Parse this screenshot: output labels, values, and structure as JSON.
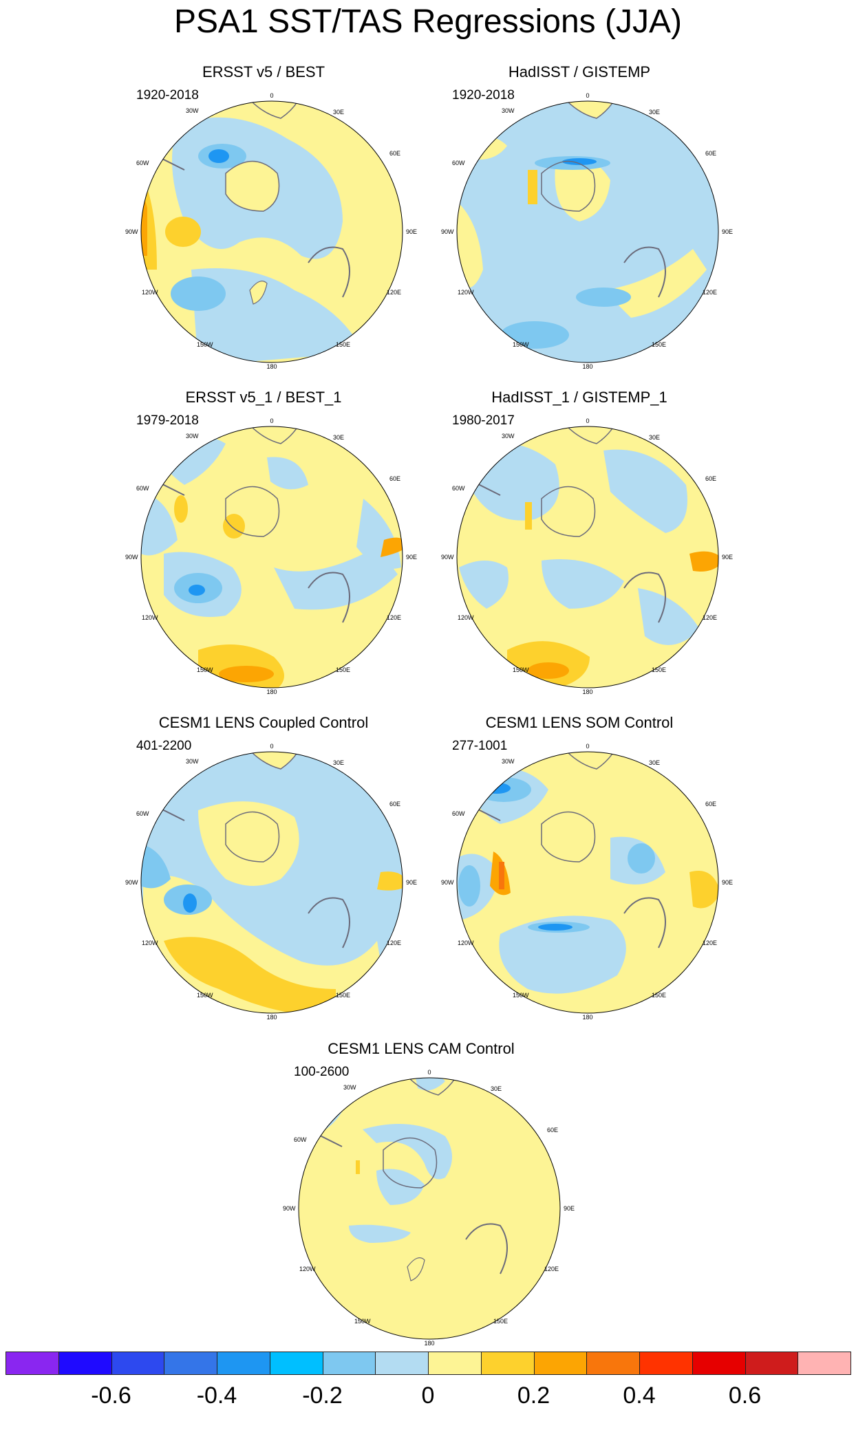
{
  "title": "PSA1 SST/TAS Regressions (JJA)",
  "colors": {
    "yellow": "#fdf495",
    "lightblue": "#b3dcf2",
    "midblue": "#7ec8f0",
    "deepblue": "#1e96f2",
    "cyan": "#00bfff",
    "gold": "#fdd12d",
    "orange": "#fca503",
    "darkorange": "#f8760c",
    "red": "#e60000",
    "land_outline": "#6a6a7a"
  },
  "panels": [
    {
      "title": "ERSST v5 / BEST",
      "period": "1920-2018",
      "lon_labels": {
        "n": "0",
        "ne": "30E",
        "e1": "60E",
        "e2": "90E",
        "se1": "120E",
        "se2": "150E",
        "s": "180",
        "sw2": "150W",
        "sw1": "120W",
        "w2": "90W",
        "w1": "60W",
        "nw": "30W"
      }
    },
    {
      "title": "HadISST / GISTEMP",
      "period": "1920-2018",
      "lon_labels": {
        "n": "0",
        "ne": "30E",
        "e1": "60E",
        "e2": "90E",
        "se1": "120E",
        "se2": "150E",
        "s": "180",
        "sw2": "150W",
        "sw1": "120W",
        "w2": "90W",
        "w1": "60W",
        "nw": "30W"
      }
    },
    {
      "title": "ERSST v5_1 / BEST_1",
      "period": "1979-2018",
      "lon_labels": {
        "n": "0",
        "ne": "30E",
        "e1": "60E",
        "e2": "90E",
        "se1": "120E",
        "se2": "150E",
        "s": "180",
        "sw2": "150W",
        "sw1": "120W",
        "w2": "90W",
        "w1": "60W",
        "nw": "30W"
      }
    },
    {
      "title": "HadISST_1 / GISTEMP_1",
      "period": "1980-2017",
      "lon_labels": {
        "n": "0",
        "ne": "30E",
        "e1": "60E",
        "e2": "90E",
        "se1": "120E",
        "se2": "150E",
        "s": "180",
        "sw2": "150W",
        "sw1": "120W",
        "w2": "90W",
        "w1": "60W",
        "nw": "30W"
      }
    },
    {
      "title": "CESM1 LENS Coupled Control",
      "period": "401-2200",
      "lon_labels": {
        "n": "0",
        "ne": "30E",
        "e1": "60E",
        "e2": "90E",
        "se1": "120E",
        "se2": "150E",
        "s": "180",
        "sw2": "150W",
        "sw1": "120W",
        "w2": "90W",
        "w1": "60W",
        "nw": "30W"
      }
    },
    {
      "title": "CESM1 LENS SOM Control",
      "period": "277-1001",
      "lon_labels": {
        "n": "0",
        "ne": "30E",
        "e1": "60E",
        "e2": "90E",
        "se1": "120E",
        "se2": "150E",
        "s": "180",
        "sw2": "150W",
        "sw1": "120W",
        "w2": "90W",
        "w1": "60W",
        "nw": "30W"
      }
    },
    {
      "title": "CESM1 LENS CAM Control",
      "period": "100-2600",
      "lon_labels": {
        "n": "0",
        "ne": "30E",
        "e1": "60E",
        "e2": "90E",
        "se1": "120E",
        "se2": "150E",
        "s": "180",
        "sw2": "150W",
        "sw1": "120W",
        "w2": "90W",
        "w1": "60W",
        "nw": "30W"
      }
    }
  ],
  "colorbar": {
    "colors": [
      "#8a26f0",
      "#1f0aff",
      "#2d49ef",
      "#3475e8",
      "#1e96f2",
      "#00bfff",
      "#7ec8f0",
      "#b3dcf2",
      "#fdf495",
      "#fdd12d",
      "#fca503",
      "#f8760c",
      "#ff3300",
      "#e60000",
      "#cf1c1c",
      "#ffb3b3"
    ],
    "labels": [
      "-0.6",
      "-0.4",
      "-0.2",
      "0",
      "0.2",
      "0.4",
      "0.6"
    ]
  }
}
